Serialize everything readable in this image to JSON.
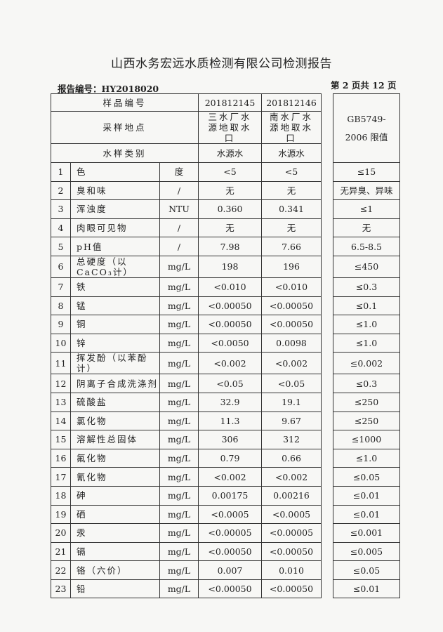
{
  "title": "山西水务宏远水质检测有限公司检测报告",
  "report_no": "报告编号：HY2018020",
  "page_no": "第 2 页共 12 页",
  "header": {
    "sample_no_label": "样品编号",
    "sample_site_label": "采样地点",
    "sample_type_label": "水样类别",
    "limit_label_1": "GB5749-",
    "limit_label_2": "2006 限值",
    "samples": [
      {
        "no": "201812145",
        "site": "三水厂水源地取水口",
        "type": "水源水"
      },
      {
        "no": "201812146",
        "site": "南水厂水源地取水口",
        "type": "水源水"
      }
    ]
  },
  "rows": [
    {
      "n": "1",
      "item": "色",
      "unit": "度",
      "v1": "<5",
      "v2": "<5",
      "limit": "≤15"
    },
    {
      "n": "2",
      "item": "臭和味",
      "unit": "/",
      "v1": "无",
      "v2": "无",
      "limit": "无异臭、异味"
    },
    {
      "n": "3",
      "item": "浑浊度",
      "unit": "NTU",
      "v1": "0.360",
      "v2": "0.341",
      "limit": "≤1"
    },
    {
      "n": "4",
      "item": "肉眼可见物",
      "unit": "/",
      "v1": "无",
      "v2": "无",
      "limit": "无"
    },
    {
      "n": "5",
      "item": "pH值",
      "unit": "/",
      "v1": "7.98",
      "v2": "7.66",
      "limit": "6.5-8.5"
    },
    {
      "n": "6",
      "item": "总硬度（以CaCO₃计）",
      "unit": "mg/L",
      "v1": "198",
      "v2": "196",
      "limit": "≤450"
    },
    {
      "n": "7",
      "item": "铁",
      "unit": "mg/L",
      "v1": "<0.010",
      "v2": "<0.010",
      "limit": "≤0.3"
    },
    {
      "n": "8",
      "item": "锰",
      "unit": "mg/L",
      "v1": "<0.00050",
      "v2": "<0.00050",
      "limit": "≤0.1"
    },
    {
      "n": "9",
      "item": "铜",
      "unit": "mg/L",
      "v1": "<0.00050",
      "v2": "<0.00050",
      "limit": "≤1.0"
    },
    {
      "n": "10",
      "item": "锌",
      "unit": "mg/L",
      "v1": "<0.0050",
      "v2": "0.0098",
      "limit": "≤1.0"
    },
    {
      "n": "11",
      "item": "挥发酚（以苯酚计）",
      "unit": "mg/L",
      "v1": "<0.002",
      "v2": "<0.002",
      "limit": "≤0.002"
    },
    {
      "n": "12",
      "item": "阴离子合成洗涤剂",
      "unit": "mg/L",
      "v1": "<0.05",
      "v2": "<0.05",
      "limit": "≤0.3"
    },
    {
      "n": "13",
      "item": "硫酸盐",
      "unit": "mg/L",
      "v1": "32.9",
      "v2": "19.1",
      "limit": "≤250"
    },
    {
      "n": "14",
      "item": "氯化物",
      "unit": "mg/L",
      "v1": "11.3",
      "v2": "9.67",
      "limit": "≤250"
    },
    {
      "n": "15",
      "item": "溶解性总固体",
      "unit": "mg/L",
      "v1": "306",
      "v2": "312",
      "limit": "≤1000"
    },
    {
      "n": "16",
      "item": "氟化物",
      "unit": "mg/L",
      "v1": "0.79",
      "v2": "0.66",
      "limit": "≤1.0"
    },
    {
      "n": "17",
      "item": "氰化物",
      "unit": "mg/L",
      "v1": "<0.002",
      "v2": "<0.002",
      "limit": "≤0.05"
    },
    {
      "n": "18",
      "item": "砷",
      "unit": "mg/L",
      "v1": "0.00175",
      "v2": "0.00216",
      "limit": "≤0.01"
    },
    {
      "n": "19",
      "item": "硒",
      "unit": "mg/L",
      "v1": "<0.0005",
      "v2": "<0.0005",
      "limit": "≤0.01"
    },
    {
      "n": "20",
      "item": "汞",
      "unit": "mg/L",
      "v1": "<0.00005",
      "v2": "<0.00005",
      "limit": "≤0.001"
    },
    {
      "n": "21",
      "item": "镉",
      "unit": "mg/L",
      "v1": "<0.00050",
      "v2": "<0.00050",
      "limit": "≤0.005"
    },
    {
      "n": "22",
      "item": "铬（六价）",
      "unit": "mg/L",
      "v1": "0.007",
      "v2": "0.010",
      "limit": "≤0.05"
    },
    {
      "n": "23",
      "item": "铅",
      "unit": "mg/L",
      "v1": "<0.00050",
      "v2": "<0.00050",
      "limit": "≤0.01"
    }
  ]
}
